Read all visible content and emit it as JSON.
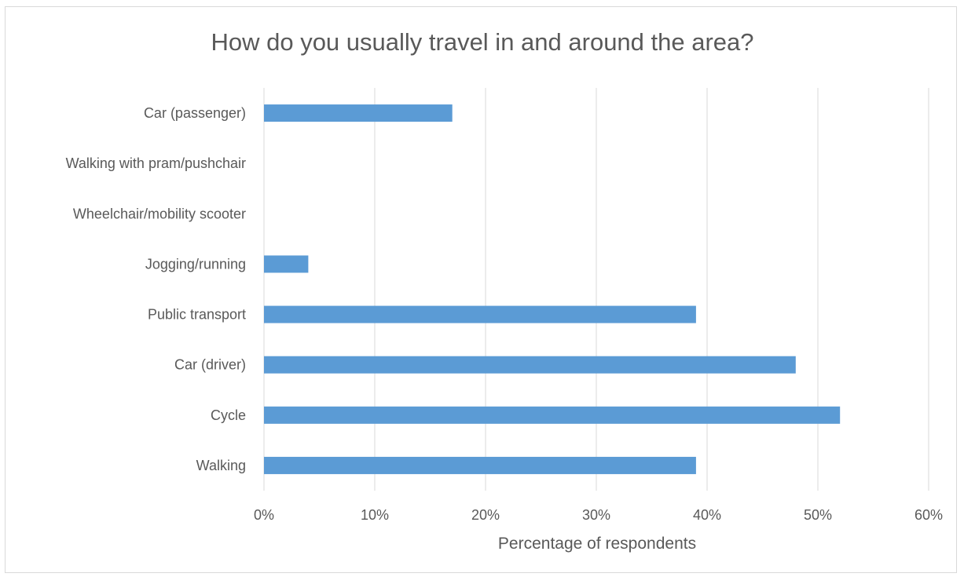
{
  "chart_data": {
    "type": "bar",
    "orientation": "horizontal",
    "title": "How do you usually travel in and around the area?",
    "xlabel": "Percentage of respondents",
    "ylabel": "",
    "categories": [
      "Walking",
      "Cycle",
      "Car (driver)",
      "Public transport",
      "Jogging/running",
      "Wheelchair/mobility scooter",
      "Walking with pram/pushchair",
      "Car (passenger)"
    ],
    "values": [
      39,
      52,
      48,
      39,
      4,
      0,
      0,
      17
    ],
    "value_unit": "%",
    "xlim": [
      0,
      60
    ],
    "x_ticks": [
      "0%",
      "10%",
      "20%",
      "30%",
      "40%",
      "50%",
      "60%"
    ],
    "grid": "vertical",
    "legend": "none",
    "bar_color": "#5b9bd5",
    "gridline_color": "#d9d9d9",
    "text_color": "#595959"
  }
}
